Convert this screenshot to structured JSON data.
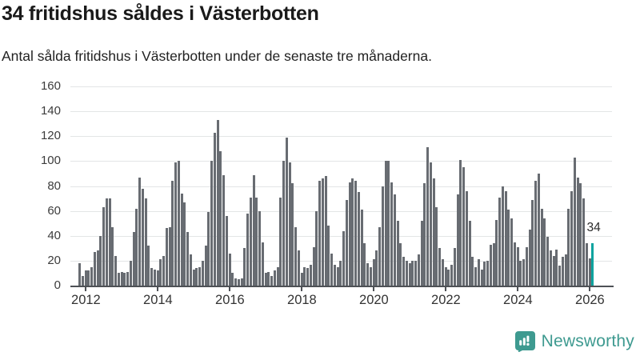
{
  "header": {
    "title": "34 fritidshus såldes i Västerbotten",
    "subtitle": "Antal sålda fritidshus i Västerbotten under de senaste tre månaderna."
  },
  "chart_data": {
    "type": "bar",
    "title": "34 fritidshus såldes i Västerbotten",
    "subtitle": "Antal sålda fritidshus i Västerbotten under de senaste tre månaderna.",
    "ylabel": "",
    "xlabel": "",
    "ylim": [
      0,
      160
    ],
    "yticks": [
      0,
      20,
      40,
      60,
      80,
      100,
      120,
      140,
      160
    ],
    "xticks": [
      "2012",
      "2014",
      "2016",
      "2018",
      "2020",
      "2022",
      "2024",
      "2026"
    ],
    "grid": "horizontal",
    "legend": "none",
    "bar_color": "#686c72",
    "highlight_color": "#0ba39f",
    "jan_2012_index": 2,
    "annotation": {
      "text": "34",
      "applies_to": "last-bar"
    },
    "series": [
      {
        "name": "Antal sålda fritidshus",
        "values": [
          18,
          8,
          12,
          12,
          15,
          27,
          28,
          40,
          63,
          70,
          70,
          47,
          24,
          10,
          11,
          10,
          11,
          20,
          43,
          62,
          87,
          78,
          70,
          32,
          14,
          13,
          12,
          21,
          24,
          46,
          47,
          84,
          99,
          100,
          74,
          67,
          43,
          25,
          13,
          14,
          15,
          20,
          32,
          59,
          100,
          123,
          133,
          108,
          89,
          56,
          26,
          10,
          6,
          5,
          6,
          30,
          58,
          71,
          89,
          71,
          60,
          35,
          10,
          11,
          8,
          12,
          15,
          71,
          100,
          119,
          99,
          82,
          47,
          28,
          10,
          15,
          14,
          17,
          31,
          60,
          84,
          86,
          88,
          48,
          26,
          17,
          15,
          20,
          44,
          69,
          83,
          86,
          84,
          75,
          61,
          34,
          18,
          15,
          21,
          28,
          47,
          80,
          100,
          100,
          83,
          73,
          52,
          34,
          23,
          20,
          18,
          20,
          20,
          25,
          52,
          82,
          111,
          99,
          86,
          63,
          30,
          21,
          15,
          13,
          17,
          30,
          73,
          101,
          95,
          76,
          52,
          23,
          15,
          21,
          13,
          19,
          20,
          33,
          34,
          53,
          71,
          80,
          76,
          61,
          54,
          35,
          31,
          20,
          21,
          31,
          45,
          69,
          84,
          90,
          62,
          54,
          39,
          28,
          24,
          29,
          16,
          23,
          25,
          62,
          76,
          103,
          87,
          82,
          70,
          34,
          22,
          34
        ]
      }
    ]
  },
  "footer": {
    "brand": "Newsworthy",
    "brand_color": "#3e9a90"
  }
}
